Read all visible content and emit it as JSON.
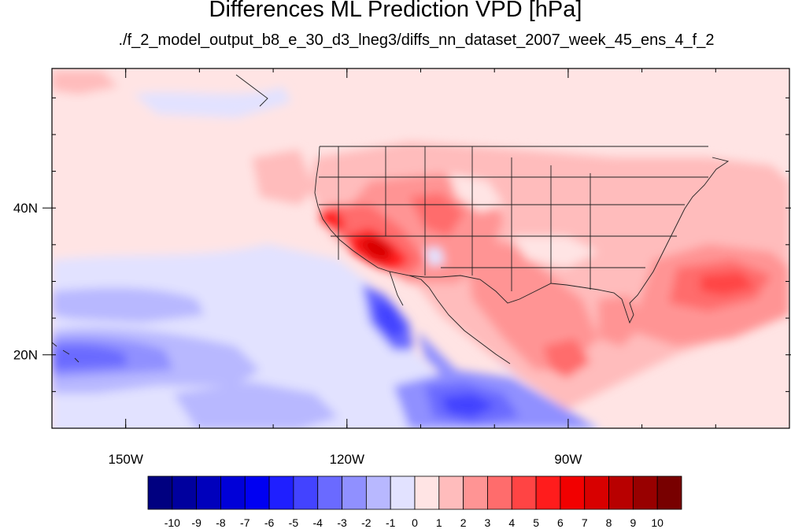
{
  "title": "Differences ML Prediction VPD [hPa]",
  "subtitle": "./f_2_model_output_b8_e_30_d3_lneg3/diffs_nn_dataset_2007_week_45_ens_4_f_2",
  "map": {
    "lon_range": [
      -160,
      -60
    ],
    "lat_range": [
      10,
      59
    ],
    "x_ticks": [
      {
        "lon": -150,
        "label": "150W"
      },
      {
        "lon": -120,
        "label": "120W"
      },
      {
        "lon": -90,
        "label": "90W"
      }
    ],
    "y_ticks": [
      {
        "lat": 40,
        "label": "40N"
      },
      {
        "lat": 20,
        "label": "20N"
      }
    ]
  },
  "colorbar": {
    "labels": [
      "-10",
      "-9",
      "-8",
      "-7",
      "-6",
      "-5",
      "-4",
      "-3",
      "-2",
      "-1",
      "0",
      "1",
      "2",
      "3",
      "4",
      "5",
      "6",
      "7",
      "8",
      "9",
      "10"
    ],
    "colors": [
      "#000080",
      "#00009e",
      "#0000bc",
      "#0000d8",
      "#0000f2",
      "#1f1fff",
      "#4343ff",
      "#6a6aff",
      "#9090ff",
      "#b8b8ff",
      "#e2e2ff",
      "#ffe4e4",
      "#ffbcbc",
      "#ff9494",
      "#ff6c6c",
      "#ff4444",
      "#ff1c1c",
      "#f20000",
      "#d80000",
      "#b80000",
      "#980000",
      "#780000"
    ]
  }
}
